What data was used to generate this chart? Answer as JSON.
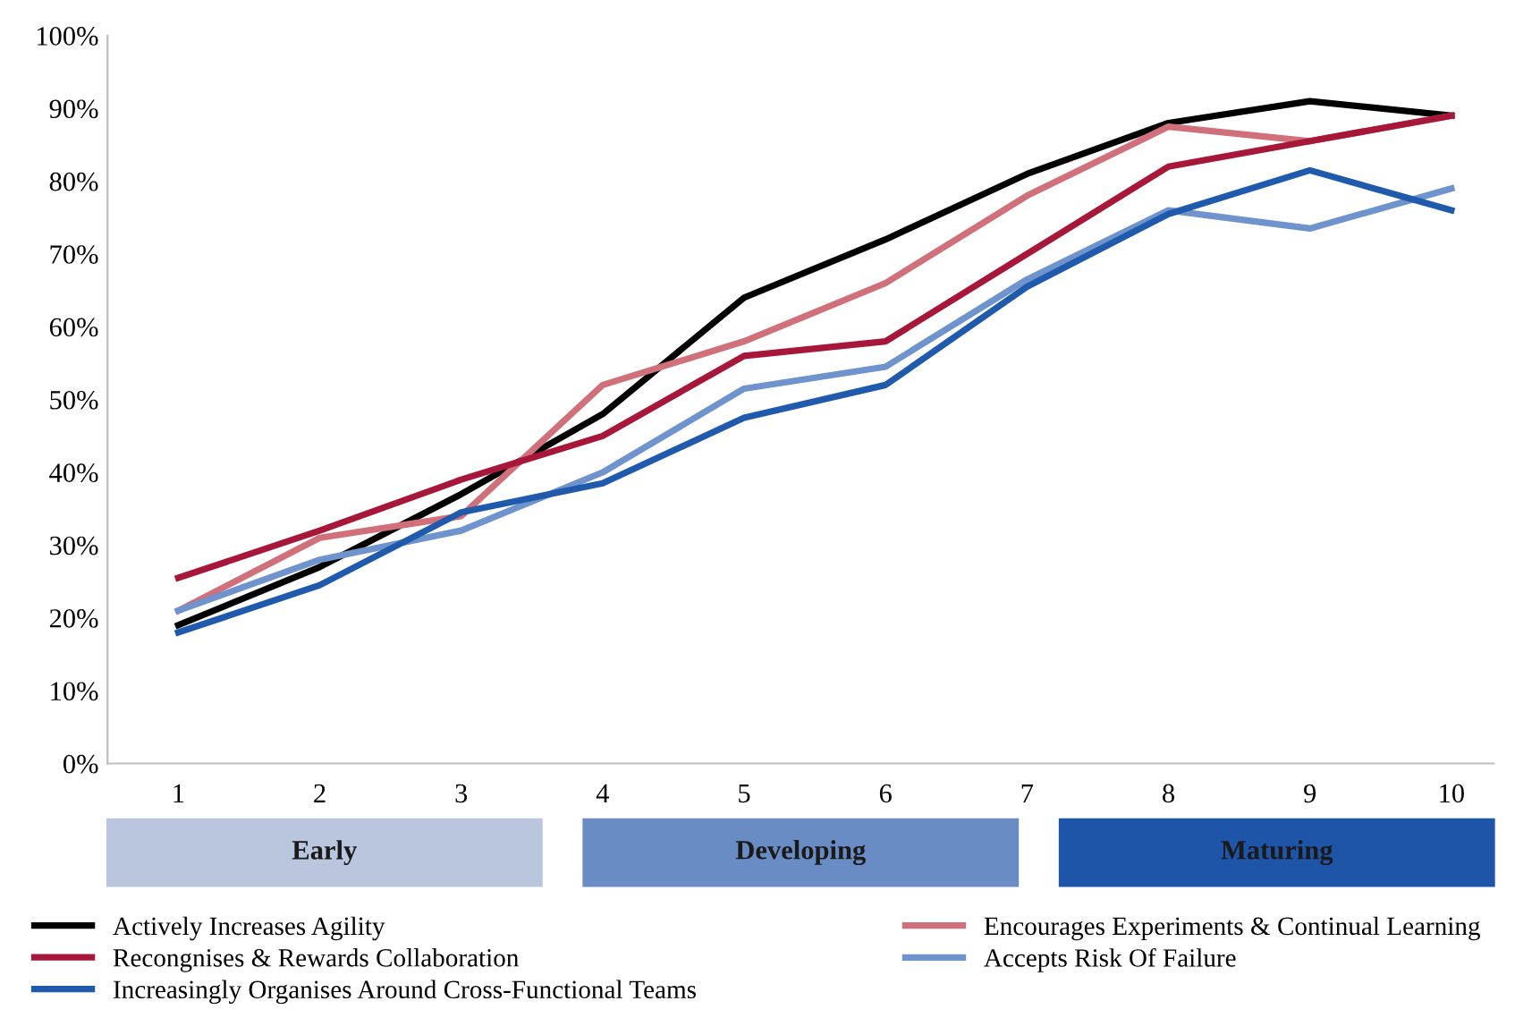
{
  "chart_data": {
    "type": "line",
    "x": [
      1,
      2,
      3,
      4,
      5,
      6,
      7,
      8,
      9,
      10
    ],
    "xlim": [
      0.5,
      10.3
    ],
    "xticks": [
      1,
      2,
      3,
      4,
      5,
      6,
      7,
      8,
      9,
      10
    ],
    "ylim": [
      0,
      100
    ],
    "yticks": [
      {
        "value": 0,
        "label": "0%"
      },
      {
        "value": 10,
        "label": "10%"
      },
      {
        "value": 20,
        "label": "20%"
      },
      {
        "value": 30,
        "label": "30%"
      },
      {
        "value": 40,
        "label": "40%"
      },
      {
        "value": 50,
        "label": "50%"
      },
      {
        "value": 60,
        "label": "60%"
      },
      {
        "value": 70,
        "label": "70%"
      },
      {
        "value": 80,
        "label": "80%"
      },
      {
        "value": 90,
        "label": "90%"
      },
      {
        "value": 100,
        "label": "100%"
      }
    ],
    "series": [
      {
        "name": "Actively Increases Agility",
        "color": "#000000",
        "values": [
          19,
          27,
          37,
          48,
          64,
          72,
          81,
          88,
          91,
          89
        ]
      },
      {
        "name": "Encourages Experiments & Continual Learning",
        "color": "#d0707a",
        "values": [
          21,
          31,
          34,
          52,
          58,
          66,
          78,
          87.5,
          85.5,
          89
        ]
      },
      {
        "name": "Recongnises & Rewards Collaboration",
        "color": "#a6173a",
        "values": [
          25.5,
          32,
          39,
          45,
          56,
          58,
          70,
          82,
          85.5,
          89
        ]
      },
      {
        "name": "Accepts Risk Of Failure",
        "color": "#6f93cc",
        "values": [
          21,
          28,
          32,
          40,
          51.5,
          54.5,
          66.5,
          76,
          73.5,
          79
        ]
      },
      {
        "name": "Increasingly Organises Around Cross-Functional Teams",
        "color": "#1f5aad",
        "values": [
          18,
          24.5,
          34.5,
          38.5,
          47.5,
          52,
          65.5,
          75.5,
          81.5,
          76
        ]
      }
    ],
    "annotations": [
      "Early",
      "Developing",
      "Maturing"
    ],
    "grid": false,
    "legend": "bottom",
    "marker": "none",
    "line_style": "solid"
  }
}
